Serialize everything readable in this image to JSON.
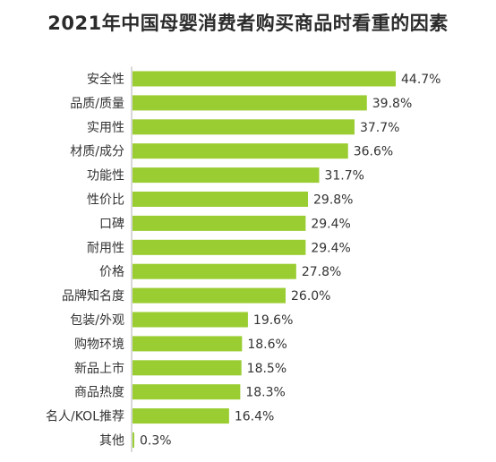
{
  "chart_data": {
    "type": "bar",
    "orientation": "horizontal",
    "title": "2021年中国母婴消费者购买商品时看重的因素",
    "categories": [
      "安全性",
      "品质/质量",
      "实用性",
      "材质/成分",
      "功能性",
      "性价比",
      "口碑",
      "耐用性",
      "价格",
      "品牌知名度",
      "包装/外观",
      "购物环境",
      "新品上市",
      "商品热度",
      "名人/KOL推荐",
      "其他"
    ],
    "values": [
      44.7,
      39.8,
      37.7,
      36.6,
      31.7,
      29.8,
      29.4,
      29.4,
      27.8,
      26.0,
      19.6,
      18.6,
      18.5,
      18.3,
      16.4,
      0.3
    ],
    "value_labels": [
      "44.7%",
      "39.8%",
      "37.7%",
      "36.6%",
      "31.7%",
      "29.8%",
      "29.4%",
      "29.4%",
      "27.8%",
      "26.0%",
      "19.6%",
      "18.6%",
      "18.5%",
      "18.3%",
      "16.4%",
      "0.3%"
    ],
    "unit": "%",
    "xlim": [
      0,
      44.7
    ],
    "grid": false,
    "legend": "none",
    "bar_color": "#9ACD32"
  }
}
